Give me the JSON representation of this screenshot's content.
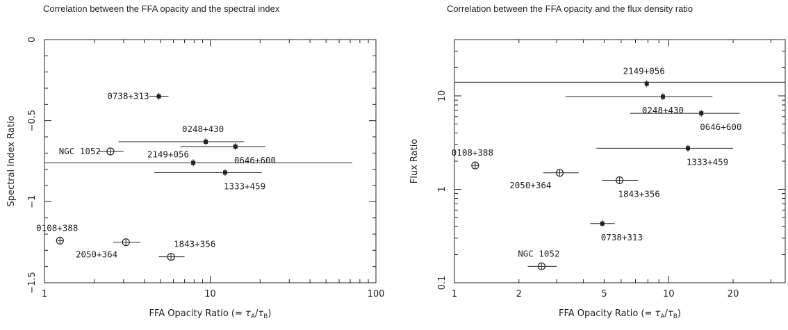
{
  "chart_data": [
    {
      "type": "scatter",
      "title": "Correlation between the FFA opacity and the spectral index",
      "xlabel": "FFA Opacity Ratio (= τ_A/τ_B)",
      "ylabel": "Spectral Index Ratio",
      "x_scale": "log",
      "xlim": [
        1,
        100
      ],
      "ylim": [
        -1.5,
        0
      ],
      "x_ticks": [
        1,
        10,
        100
      ],
      "x_tick_labels": [
        "1",
        "10",
        "100"
      ],
      "y_ticks": [
        -1.5,
        -1,
        -0.5,
        0
      ],
      "y_tick_labels": [
        "−1.5",
        "−1",
        "−0.5",
        "0"
      ],
      "reference_line": {
        "y": -0.76,
        "x_from": 1,
        "x_to": 72
      },
      "points": [
        {
          "label": "0738+313",
          "x": 4.9,
          "y": -0.35,
          "x_err": [
            4.3,
            5.6
          ],
          "marker": "filled-square",
          "label_side": "left"
        },
        {
          "label": "NGC 1052",
          "x": 2.5,
          "y": -0.69,
          "x_err": [
            2.1,
            3.0
          ],
          "marker": "open-circle",
          "label_side": "left"
        },
        {
          "label": "0248+430",
          "x": 9.4,
          "y": -0.63,
          "x_err": [
            2.8,
            16
          ],
          "marker": "filled-square",
          "label_side": "above"
        },
        {
          "label": "0646+600",
          "x": 14.2,
          "y": -0.66,
          "x_err": [
            6.6,
            21.5
          ],
          "marker": "filled-square",
          "label_side": "below-right"
        },
        {
          "label": "2149+056",
          "x": 7.9,
          "y": -0.76,
          "x_err": [
            7.9,
            7.9
          ],
          "marker": "filled-square",
          "label_side": "above-left"
        },
        {
          "label": "1333+459",
          "x": 12.3,
          "y": -0.82,
          "x_err": [
            4.6,
            20.5
          ],
          "marker": "filled-square",
          "label_side": "below-right"
        },
        {
          "label": "0108+388",
          "x": 1.24,
          "y": -1.24,
          "x_err": [
            1.2,
            1.3
          ],
          "marker": "open-circle",
          "label_side": "above"
        },
        {
          "label": "2050+364",
          "x": 3.1,
          "y": -1.25,
          "x_err": [
            2.6,
            3.8
          ],
          "marker": "open-circle",
          "label_side": "below-left"
        },
        {
          "label": "1843+356",
          "x": 5.8,
          "y": -1.34,
          "x_err": [
            4.9,
            7.0
          ],
          "marker": "open-circle",
          "label_side": "above-right"
        }
      ]
    },
    {
      "type": "scatter",
      "title": "Correlation between the FFA opacity and the flux density ratio",
      "xlabel": "FFA Opacity Ratio (= τ_A/τ_B)",
      "ylabel": "Flux Ratio",
      "x_scale": "log",
      "y_scale": "log",
      "xlim": [
        1,
        35
      ],
      "ylim": [
        0.1,
        40
      ],
      "x_ticks": [
        1,
        2,
        5,
        10,
        20
      ],
      "x_tick_labels": [
        "1",
        "2",
        "5",
        "10",
        "20"
      ],
      "y_ticks": [
        0.1,
        1,
        10
      ],
      "y_tick_labels": [
        "0.1",
        "1",
        "10"
      ],
      "reference_line": {
        "y": 14,
        "x_from": 1,
        "x_to": 35
      },
      "points": [
        {
          "label": "2149+056",
          "x": 7.9,
          "y": 13.5,
          "x_err": [
            7.9,
            7.9
          ],
          "marker": "filled-square",
          "label_side": "above"
        },
        {
          "label": "0248+430",
          "x": 9.4,
          "y": 9.8,
          "x_err": [
            3.3,
            16
          ],
          "marker": "filled-square",
          "label_side": "below"
        },
        {
          "label": "0646+600",
          "x": 14.2,
          "y": 6.5,
          "x_err": [
            6.6,
            21.5
          ],
          "marker": "filled-square",
          "label_side": "below-right"
        },
        {
          "label": "1333+459",
          "x": 12.3,
          "y": 2.75,
          "x_err": [
            4.6,
            20
          ],
          "marker": "filled-square",
          "label_side": "below-right"
        },
        {
          "label": "0108+388",
          "x": 1.25,
          "y": 1.8,
          "x_err": [
            1.2,
            1.3
          ],
          "marker": "open-circle",
          "label_side": "above"
        },
        {
          "label": "2050+364",
          "x": 3.1,
          "y": 1.5,
          "x_err": [
            2.6,
            3.8
          ],
          "marker": "open-circle",
          "label_side": "below-left"
        },
        {
          "label": "1843+356",
          "x": 5.9,
          "y": 1.25,
          "x_err": [
            4.9,
            7.2
          ],
          "marker": "open-circle",
          "label_side": "below-right"
        },
        {
          "label": "0738+313",
          "x": 4.9,
          "y": 0.43,
          "x_err": [
            4.3,
            5.6
          ],
          "marker": "filled-square",
          "label_side": "below-right"
        },
        {
          "label": "NGC 1052",
          "x": 2.55,
          "y": 0.15,
          "x_err": [
            2.2,
            3.0
          ],
          "marker": "open-circle",
          "label_side": "above"
        }
      ]
    }
  ]
}
